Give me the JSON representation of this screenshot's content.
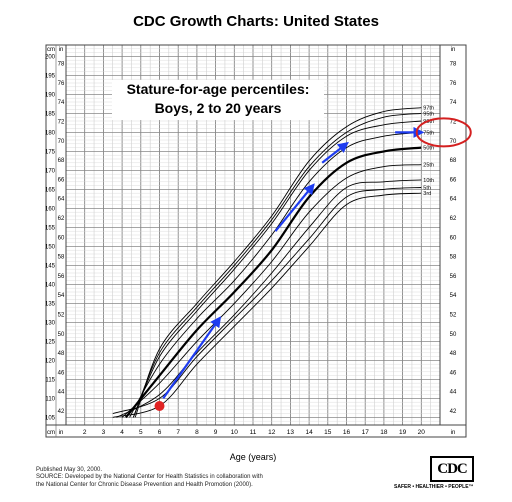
{
  "title": "CDC Growth Charts: United States",
  "panel_title": [
    "Stature-for-age percentiles:",
    "Boys, 2 to 20 years"
  ],
  "footnote": [
    "Published May 30, 2000.",
    "SOURCE: Developed by the National Center for Health Statistics in collaboration with",
    "the National Center for Chronic Disease Prevention and Health Promotion (2000)."
  ],
  "logo_text": "CDC",
  "tagline": "SAFER • HEALTHIER • PEOPLE™",
  "chart_data": {
    "type": "line",
    "xlabel": "Age (years)",
    "x_ticks": [
      2,
      3,
      4,
      5,
      6,
      7,
      8,
      9,
      10,
      11,
      12,
      13,
      14,
      15,
      16,
      17,
      18,
      19,
      20
    ],
    "xlim": [
      1,
      21
    ],
    "unit_labels": {
      "cm": "cm",
      "in": "in"
    },
    "cm_ticks": [
      105,
      110,
      115,
      120,
      125,
      130,
      135,
      140,
      145,
      150,
      155,
      160,
      165,
      170,
      175,
      180,
      185,
      190,
      195,
      200
    ],
    "in_ticks": [
      42,
      44,
      46,
      48,
      50,
      52,
      54,
      56,
      58,
      60,
      62,
      64,
      66,
      68,
      70,
      72,
      74,
      76,
      78
    ],
    "ylim_cm": [
      103,
      203
    ],
    "series": [
      {
        "name": "3rd",
        "x": [
          3.5,
          4,
          6,
          8,
          10,
          12,
          14,
          16,
          18,
          20
        ],
        "y": [
          105,
          96,
          108,
          119,
          129,
          139,
          150,
          161,
          163.5,
          164
        ]
      },
      {
        "name": "5th",
        "x": [
          3.5,
          4,
          6,
          8,
          10,
          12,
          14,
          16,
          18,
          20
        ],
        "y": [
          106,
          98,
          110,
          121,
          131,
          141,
          152,
          163,
          165,
          165.5
        ]
      },
      {
        "name": "10th",
        "x": [
          3.7,
          4,
          6,
          8,
          10,
          12,
          14,
          16,
          18,
          20
        ],
        "y": [
          105,
          99,
          111,
          122,
          132,
          143,
          155,
          165.5,
          167,
          167.5
        ]
      },
      {
        "name": "25th",
        "x": [
          4,
          6,
          8,
          10,
          12,
          14,
          16,
          18,
          20
        ],
        "y": [
          105,
          114,
          125,
          135,
          146,
          159,
          168,
          171,
          171.5
        ]
      },
      {
        "name": "50th",
        "x": [
          4.2,
          6,
          8,
          10,
          12,
          14,
          16,
          18,
          20
        ],
        "y": [
          105,
          116,
          128,
          138,
          149,
          163,
          172,
          175,
          176
        ]
      },
      {
        "name": "75th",
        "x": [
          4.4,
          6,
          8,
          10,
          12,
          14,
          16,
          18,
          20
        ],
        "y": [
          105,
          119,
          131,
          141,
          153,
          167,
          176,
          179,
          180
        ]
      },
      {
        "name": "90th",
        "x": [
          4.6,
          6,
          8,
          10,
          12,
          14,
          16,
          18,
          20
        ],
        "y": [
          105,
          121,
          133,
          144,
          156,
          170,
          179,
          182,
          183
        ]
      },
      {
        "name": "95th",
        "x": [
          4.6,
          6,
          8,
          10,
          12,
          14,
          16,
          18,
          20
        ],
        "y": [
          105,
          122,
          134,
          145,
          157,
          171,
          180,
          184,
          185
        ]
      },
      {
        "name": "97th",
        "x": [
          4.7,
          6,
          8,
          10,
          12,
          14,
          16,
          18,
          20
        ],
        "y": [
          105,
          123,
          135,
          146,
          158,
          172.5,
          181.5,
          185.5,
          186.5
        ]
      }
    ],
    "annotations": {
      "point": {
        "x": 6,
        "y_cm": 108,
        "color": "#e02222"
      },
      "arrows_color": "#1e3cf0",
      "arrows": [
        {
          "from": [
            6.2,
            110
          ],
          "to": [
            9.2,
            131
          ]
        },
        {
          "from": [
            12.2,
            154
          ],
          "to": [
            14.2,
            166
          ]
        },
        {
          "from": [
            14.7,
            172
          ],
          "to": [
            16,
            177
          ]
        },
        {
          "from": [
            18.6,
            180
          ],
          "to": [
            20,
            180
          ]
        }
      ],
      "circle": {
        "x": 21.2,
        "y_cm": 180,
        "color": "#d42020"
      }
    }
  }
}
